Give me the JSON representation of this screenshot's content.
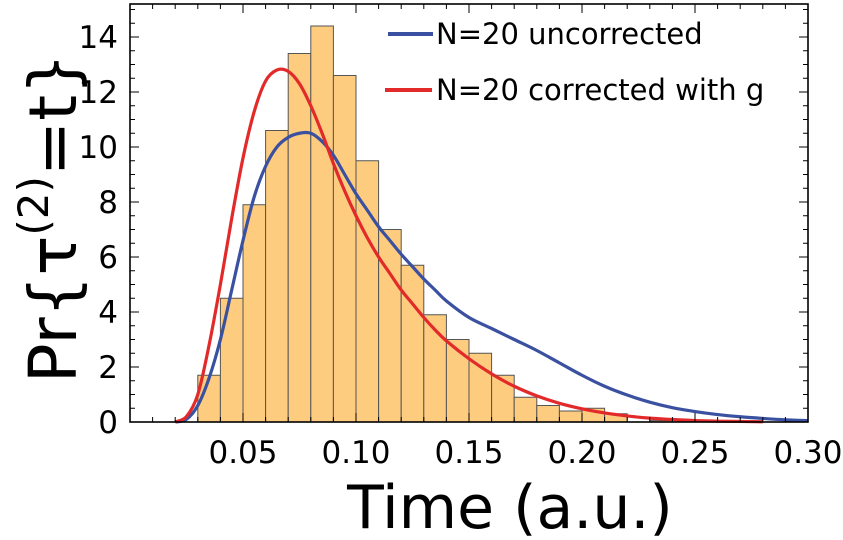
{
  "chart_data": {
    "type": "bar",
    "xlabel": "Time (a.u.)",
    "ylabel": "Pr{τ(2)=t}",
    "ylabel_parts": {
      "pre": "Pr{τ",
      "sup": "(2)",
      "post": "=t}"
    },
    "xlim": [
      0.0,
      0.3
    ],
    "ylim": [
      0,
      15.2
    ],
    "xticks": [
      "0.05",
      "0.10",
      "0.15",
      "0.20",
      "0.25",
      "0.30"
    ],
    "xtick_values": [
      0.05,
      0.1,
      0.15,
      0.2,
      0.25,
      0.3
    ],
    "yticks": [
      "0",
      "2",
      "4",
      "6",
      "8",
      "10",
      "12",
      "14"
    ],
    "ytick_values": [
      0,
      2,
      4,
      6,
      8,
      10,
      12,
      14
    ],
    "grid": false,
    "legend_position": "top-right",
    "histogram": {
      "bin_width": 0.01,
      "fill_color": "#fdcc7f",
      "edge_color": "#555555",
      "bins": [
        {
          "x0": 0.03,
          "x1": 0.04,
          "value": 1.7
        },
        {
          "x0": 0.04,
          "x1": 0.05,
          "value": 4.5
        },
        {
          "x0": 0.05,
          "x1": 0.06,
          "value": 7.9
        },
        {
          "x0": 0.06,
          "x1": 0.07,
          "value": 10.6
        },
        {
          "x0": 0.07,
          "x1": 0.08,
          "value": 13.4
        },
        {
          "x0": 0.08,
          "x1": 0.09,
          "value": 14.4
        },
        {
          "x0": 0.09,
          "x1": 0.1,
          "value": 12.6
        },
        {
          "x0": 0.1,
          "x1": 0.11,
          "value": 9.5
        },
        {
          "x0": 0.11,
          "x1": 0.12,
          "value": 7.0
        },
        {
          "x0": 0.12,
          "x1": 0.13,
          "value": 5.7
        },
        {
          "x0": 0.13,
          "x1": 0.14,
          "value": 3.9
        },
        {
          "x0": 0.14,
          "x1": 0.15,
          "value": 3.0
        },
        {
          "x0": 0.15,
          "x1": 0.16,
          "value": 2.5
        },
        {
          "x0": 0.16,
          "x1": 0.17,
          "value": 1.7
        },
        {
          "x0": 0.17,
          "x1": 0.18,
          "value": 0.9
        },
        {
          "x0": 0.18,
          "x1": 0.19,
          "value": 0.6
        },
        {
          "x0": 0.19,
          "x1": 0.2,
          "value": 0.4
        },
        {
          "x0": 0.2,
          "x1": 0.21,
          "value": 0.5
        },
        {
          "x0": 0.21,
          "x1": 0.22,
          "value": 0.3
        },
        {
          "x0": 0.23,
          "x1": 0.24,
          "value": 0.05
        }
      ]
    },
    "series": [
      {
        "name": "N=20 uncorrected",
        "color": "#3a50a0",
        "x": [
          0.02,
          0.025,
          0.03,
          0.035,
          0.04,
          0.045,
          0.05,
          0.055,
          0.06,
          0.065,
          0.07,
          0.075,
          0.08,
          0.085,
          0.09,
          0.095,
          0.1,
          0.105,
          0.11,
          0.115,
          0.12,
          0.125,
          0.13,
          0.135,
          0.14,
          0.15,
          0.16,
          0.17,
          0.18,
          0.19,
          0.2,
          0.21,
          0.22,
          0.23,
          0.24,
          0.25,
          0.26,
          0.27,
          0.28,
          0.29,
          0.3
        ],
        "y": [
          0.0,
          0.1,
          0.6,
          1.6,
          3.0,
          4.8,
          6.6,
          8.2,
          9.3,
          10.0,
          10.35,
          10.5,
          10.5,
          10.2,
          9.7,
          9.0,
          8.3,
          7.7,
          7.1,
          6.6,
          6.1,
          5.65,
          5.2,
          4.8,
          4.4,
          3.8,
          3.4,
          3.0,
          2.6,
          2.15,
          1.7,
          1.3,
          0.98,
          0.72,
          0.52,
          0.38,
          0.27,
          0.19,
          0.13,
          0.08,
          0.05
        ]
      },
      {
        "name": "N=20 corrected with g",
        "color": "#e32a2a",
        "x": [
          0.02,
          0.025,
          0.03,
          0.035,
          0.04,
          0.045,
          0.05,
          0.055,
          0.06,
          0.065,
          0.07,
          0.075,
          0.08,
          0.085,
          0.09,
          0.095,
          0.1,
          0.105,
          0.11,
          0.115,
          0.12,
          0.125,
          0.13,
          0.135,
          0.14,
          0.15,
          0.16,
          0.17,
          0.18,
          0.19,
          0.2,
          0.21,
          0.22,
          0.23,
          0.24,
          0.25,
          0.26,
          0.27,
          0.28
        ],
        "y": [
          0.0,
          0.2,
          1.0,
          2.8,
          5.0,
          7.4,
          9.6,
          11.3,
          12.4,
          12.8,
          12.75,
          12.3,
          11.5,
          10.5,
          9.4,
          8.4,
          7.5,
          6.7,
          6.0,
          5.4,
          4.8,
          4.3,
          3.8,
          3.35,
          2.95,
          2.3,
          1.75,
          1.3,
          0.95,
          0.68,
          0.48,
          0.33,
          0.22,
          0.14,
          0.09,
          0.05,
          0.03,
          0.02,
          0.01
        ]
      }
    ]
  }
}
